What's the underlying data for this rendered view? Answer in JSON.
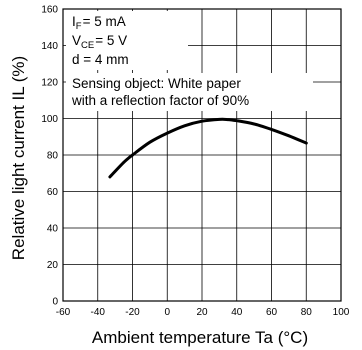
{
  "chart_data": {
    "type": "line",
    "xlabel": "Ambient temperature Ta (°C)",
    "ylabel": "Relative light current IL (%)",
    "xlim": [
      -60,
      100
    ],
    "ylim": [
      0,
      160
    ],
    "x_ticks": [
      "-60",
      "-40",
      "-20",
      "0",
      "20",
      "40",
      "60",
      "80",
      "100"
    ],
    "y_ticks": [
      "0",
      "20",
      "40",
      "60",
      "80",
      "100",
      "120",
      "140",
      "160"
    ],
    "grid": true,
    "annotations": {
      "if_symbol": "I",
      "if_sub": "F",
      "if_value": "= 5 mA",
      "vce_symbol": "V",
      "vce_sub": "CE",
      "vce_value": "= 5 V",
      "d_text": "d = 4 mm",
      "sensing_line1": "Sensing object: White paper",
      "sensing_line2": "with a reflection factor of 90%"
    },
    "series": [
      {
        "x": [
          -33,
          -25,
          -20,
          -10,
          0,
          10,
          20,
          30,
          35,
          40,
          50,
          60,
          70,
          80
        ],
        "y": [
          68,
          76,
          80,
          87,
          92,
          96,
          98.5,
          99.5,
          99.4,
          98.8,
          97,
          94,
          90.5,
          86.5
        ]
      }
    ]
  }
}
